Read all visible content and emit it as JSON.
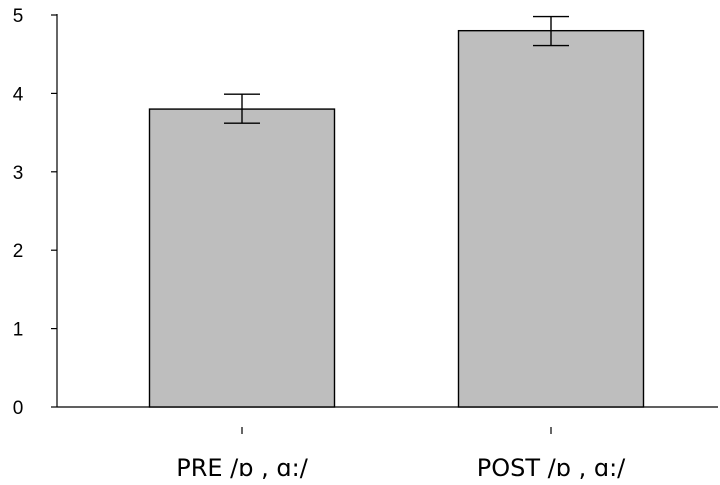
{
  "chart_data": {
    "type": "bar",
    "categories": [
      "PRE /ɒ , ɑ:/",
      "POST /ɒ , ɑ:/"
    ],
    "values": [
      3.8,
      4.8
    ],
    "error_low": [
      3.62,
      4.61
    ],
    "error_high": [
      3.99,
      4.98
    ],
    "ylim": [
      0,
      5
    ],
    "yticks": [
      "0",
      "1",
      "2",
      "3",
      "4",
      "5"
    ],
    "bar_color": "#bebebe",
    "grid": false
  }
}
